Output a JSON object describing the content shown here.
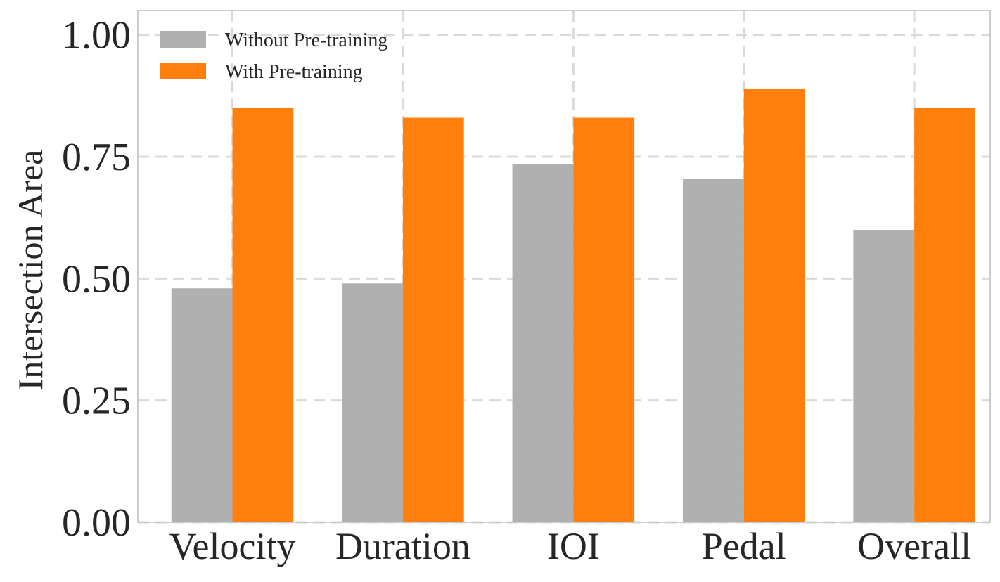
{
  "chart_data": {
    "type": "bar",
    "title": "",
    "xlabel": "",
    "ylabel": "Intersection Area",
    "ylim": [
      0,
      1.05
    ],
    "yticks": [
      0.0,
      0.25,
      0.5,
      0.75,
      1.0
    ],
    "ytick_labels": [
      "0.00",
      "0.25",
      "0.50",
      "0.75",
      "1.00"
    ],
    "categories": [
      "Velocity",
      "Duration",
      "IOI",
      "Pedal",
      "Overall"
    ],
    "grid": true,
    "legend_position": "top-left",
    "series": [
      {
        "name": "Without Pre-training",
        "color": "#b0b0b0",
        "values": [
          0.48,
          0.49,
          0.735,
          0.705,
          0.6
        ]
      },
      {
        "name": "With Pre-training",
        "color": "#ff7f0e",
        "values": [
          0.85,
          0.83,
          0.83,
          0.89,
          0.85
        ]
      }
    ]
  }
}
